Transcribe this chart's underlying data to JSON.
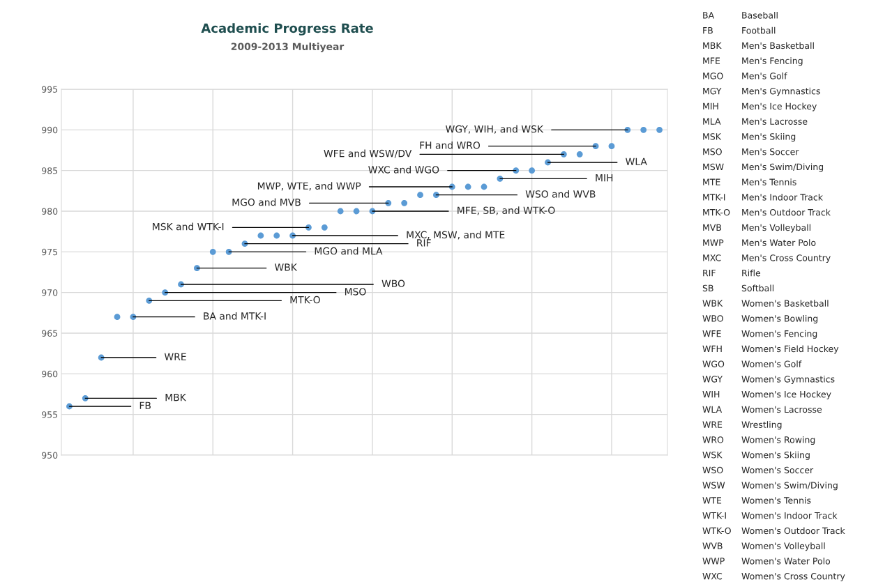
{
  "chart_data": {
    "type": "scatter",
    "title": "Academic Progress Rate",
    "subtitle": "2009-2013 Multiyear",
    "categories": [
      null,
      null,
      null,
      null,
      null,
      null,
      null,
      null,
      null,
      null,
      null,
      null,
      null,
      null,
      null,
      null,
      null,
      null,
      null,
      null,
      null,
      null,
      null,
      null,
      null,
      null,
      null,
      null,
      null,
      null,
      null,
      null,
      null,
      null,
      null,
      null,
      null,
      null
    ],
    "values": [
      956,
      957,
      962,
      967,
      967,
      969,
      970,
      971,
      973,
      975,
      975,
      976,
      977,
      977,
      977,
      978,
      978,
      980,
      980,
      980,
      981,
      981,
      982,
      982,
      983,
      983,
      983,
      984,
      985,
      985,
      986,
      987,
      987,
      988,
      988,
      990,
      990,
      990
    ],
    "color": "#5b9bd5",
    "marker": "circle",
    "ylim": [
      950,
      995
    ],
    "yticks": [
      950,
      955,
      960,
      965,
      970,
      975,
      980,
      985,
      990,
      995
    ],
    "grid": true,
    "tick_labels": "y",
    "annotations": [
      "FB",
      "MBK",
      "WRE",
      "BA and MTK-I",
      "MTK-O",
      "MSO",
      "WBO",
      "WBK",
      "MGO and MLA",
      "RIF",
      "MXC, MSW, and MTE",
      "MSK and WTK-I",
      "MFE, SB, and WTK-O",
      "MGO and MVB",
      "WSO and WVB",
      "MWP, WTE, and WWP",
      "MIH",
      "WXC and WGO",
      "WLA",
      "WFE and WSW/DV",
      "FH and WRO",
      "WGY, WIH, and WSK",
      "BA",
      "Baseball",
      "FB",
      "Football",
      "MBK",
      "Men's Basketball",
      "MFE",
      "Men's Fencing",
      "MGO",
      "Men's Golf",
      "MGY",
      "Men's Gymnastics",
      "MIH",
      "Men's Ice Hockey",
      "MLA",
      "Men's Lacrosse",
      "MSK",
      "Men's Skiing",
      "MSO",
      "Men's Soccer",
      "MSW",
      "Men's Swim/Diving",
      "MTE",
      "Men's Tennis",
      "MTK-I",
      "Men's Indoor Track",
      "MTK-O",
      "Men's Outdoor Track",
      "MVB",
      "Men's Volleyball",
      "MWP",
      "Men's Water Polo",
      "MXC",
      "Men's Cross Country",
      "RIF",
      "Rifle",
      "SB",
      "Softball",
      "WBK",
      "Women's Basketball",
      "WBO",
      "Women's Bowling",
      "WFE",
      "Women's Fencing",
      "WFH",
      "Women's Field Hockey",
      "WGO",
      "Women's Golf",
      "WGY",
      "Women's Gymnastics",
      "WIH",
      "Women's Ice Hockey",
      "WLA",
      "Women's Lacrosse",
      "WRE",
      "Wrestling",
      "WRO",
      "Women's Rowing",
      "WSK",
      "Women's Skiing",
      "WSO",
      "Women's Soccer",
      "WSW",
      "Women's Swim/Diving",
      "WTE",
      "Women's Tennis",
      "WTK-I",
      "Women's Indoor Track",
      "WTK-O",
      "Women's Outdoor Track",
      "WVB",
      "Women's Volleyball",
      "WWP",
      "Women's Water Polo",
      "WXC",
      "Women's Cross Country"
    ]
  }
}
